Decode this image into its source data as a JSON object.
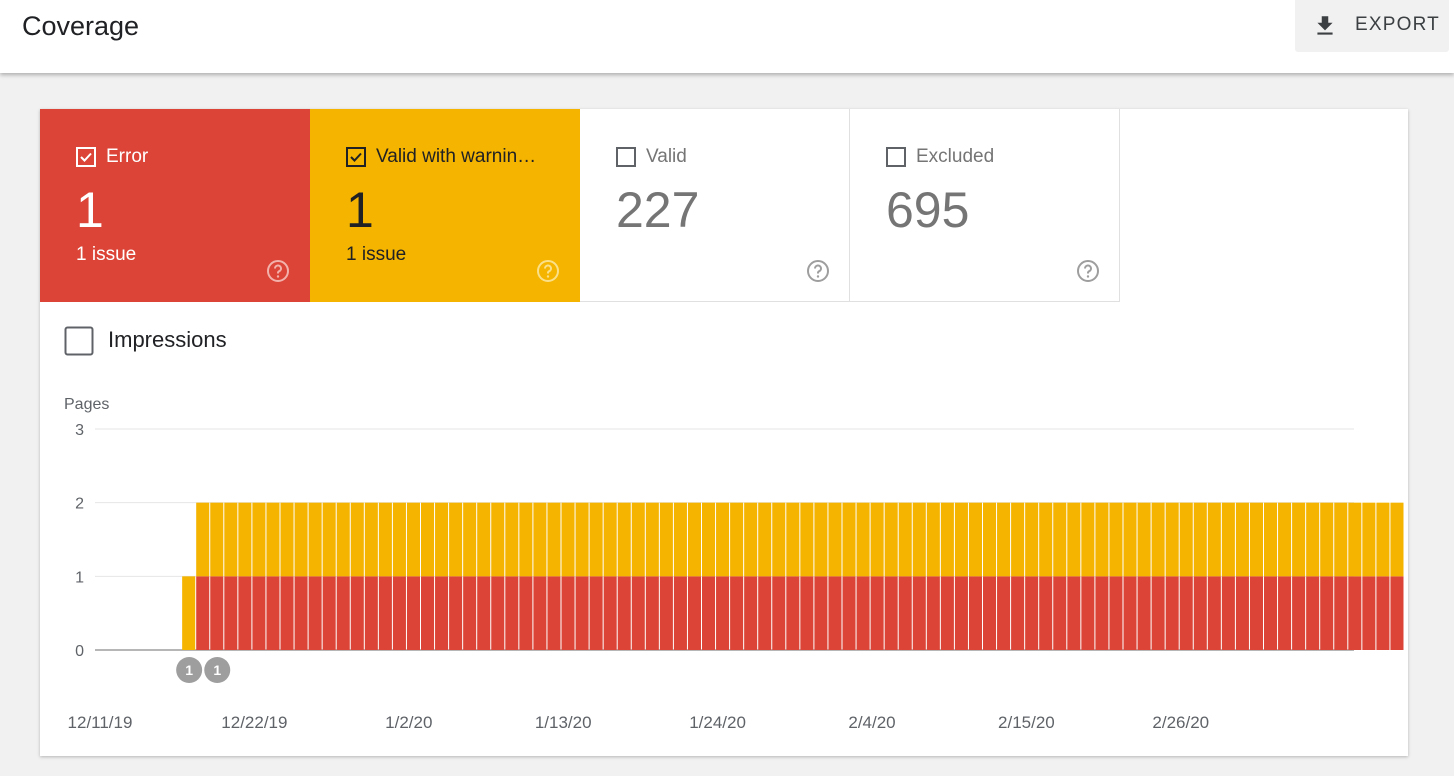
{
  "header": {
    "title": "Coverage",
    "export_label": "EXPORT",
    "export_icon": "download-icon"
  },
  "tiles": [
    {
      "label": "Error",
      "count": "1",
      "sub": "1 issue",
      "checked": true,
      "color": "#db4437"
    },
    {
      "label": "Valid with warnin…",
      "count": "1",
      "sub": "1 issue",
      "checked": true,
      "color": "#f4b400"
    },
    {
      "label": "Valid",
      "count": "227",
      "sub": "",
      "checked": false
    },
    {
      "label": "Excluded",
      "count": "695",
      "sub": "",
      "checked": false
    }
  ],
  "impressions": {
    "label": "Impressions",
    "checked": false
  },
  "chart_data": {
    "type": "bar",
    "stacked": true,
    "ylabel": "Pages",
    "ylim": [
      0,
      3
    ],
    "yticks": [
      "0",
      "1",
      "2",
      "3"
    ],
    "x_start": "12/11/19",
    "x_tick_labels": [
      "12/11/19",
      "12/22/19",
      "1/2/20",
      "1/13/20",
      "1/24/20",
      "2/4/20",
      "2/15/20",
      "2/26/20"
    ],
    "grid": true,
    "series": [
      {
        "name": "Error",
        "color": "#db4437",
        "values": [
          0,
          0,
          0,
          0,
          1,
          1,
          1,
          1,
          1,
          1,
          1,
          1,
          1,
          1,
          1,
          1,
          1,
          1,
          1,
          1,
          1,
          1,
          1,
          1,
          1,
          1,
          1,
          1,
          1,
          1,
          1,
          1,
          1,
          1,
          1,
          1,
          1,
          1,
          1,
          1,
          1,
          1,
          1,
          1,
          1,
          1,
          1,
          1,
          1,
          1,
          1,
          1,
          1,
          1,
          1,
          1,
          1,
          1,
          1,
          1,
          1,
          1,
          1,
          1,
          1,
          1,
          1,
          1,
          1,
          1,
          1,
          1,
          1,
          1,
          1,
          1,
          1,
          1,
          1,
          1,
          1,
          1,
          1,
          1,
          1,
          1,
          1,
          1,
          1,
          1
        ]
      },
      {
        "name": "Valid with warnings",
        "color": "#f4b400",
        "values": [
          0,
          0,
          0,
          1,
          1,
          1,
          1,
          1,
          1,
          1,
          1,
          1,
          1,
          1,
          1,
          1,
          1,
          1,
          1,
          1,
          1,
          1,
          1,
          1,
          1,
          1,
          1,
          1,
          1,
          1,
          1,
          1,
          1,
          1,
          1,
          1,
          1,
          1,
          1,
          1,
          1,
          1,
          1,
          1,
          1,
          1,
          1,
          1,
          1,
          1,
          1,
          1,
          1,
          1,
          1,
          1,
          1,
          1,
          1,
          1,
          1,
          1,
          1,
          1,
          1,
          1,
          1,
          1,
          1,
          1,
          1,
          1,
          1,
          1,
          1,
          1,
          1,
          1,
          1,
          1,
          1,
          1,
          1,
          1,
          1,
          1,
          1,
          1,
          1,
          1
        ]
      }
    ],
    "annotations": [
      {
        "label": "1",
        "day_index": 3
      },
      {
        "label": "1",
        "day_index": 5
      }
    ]
  }
}
